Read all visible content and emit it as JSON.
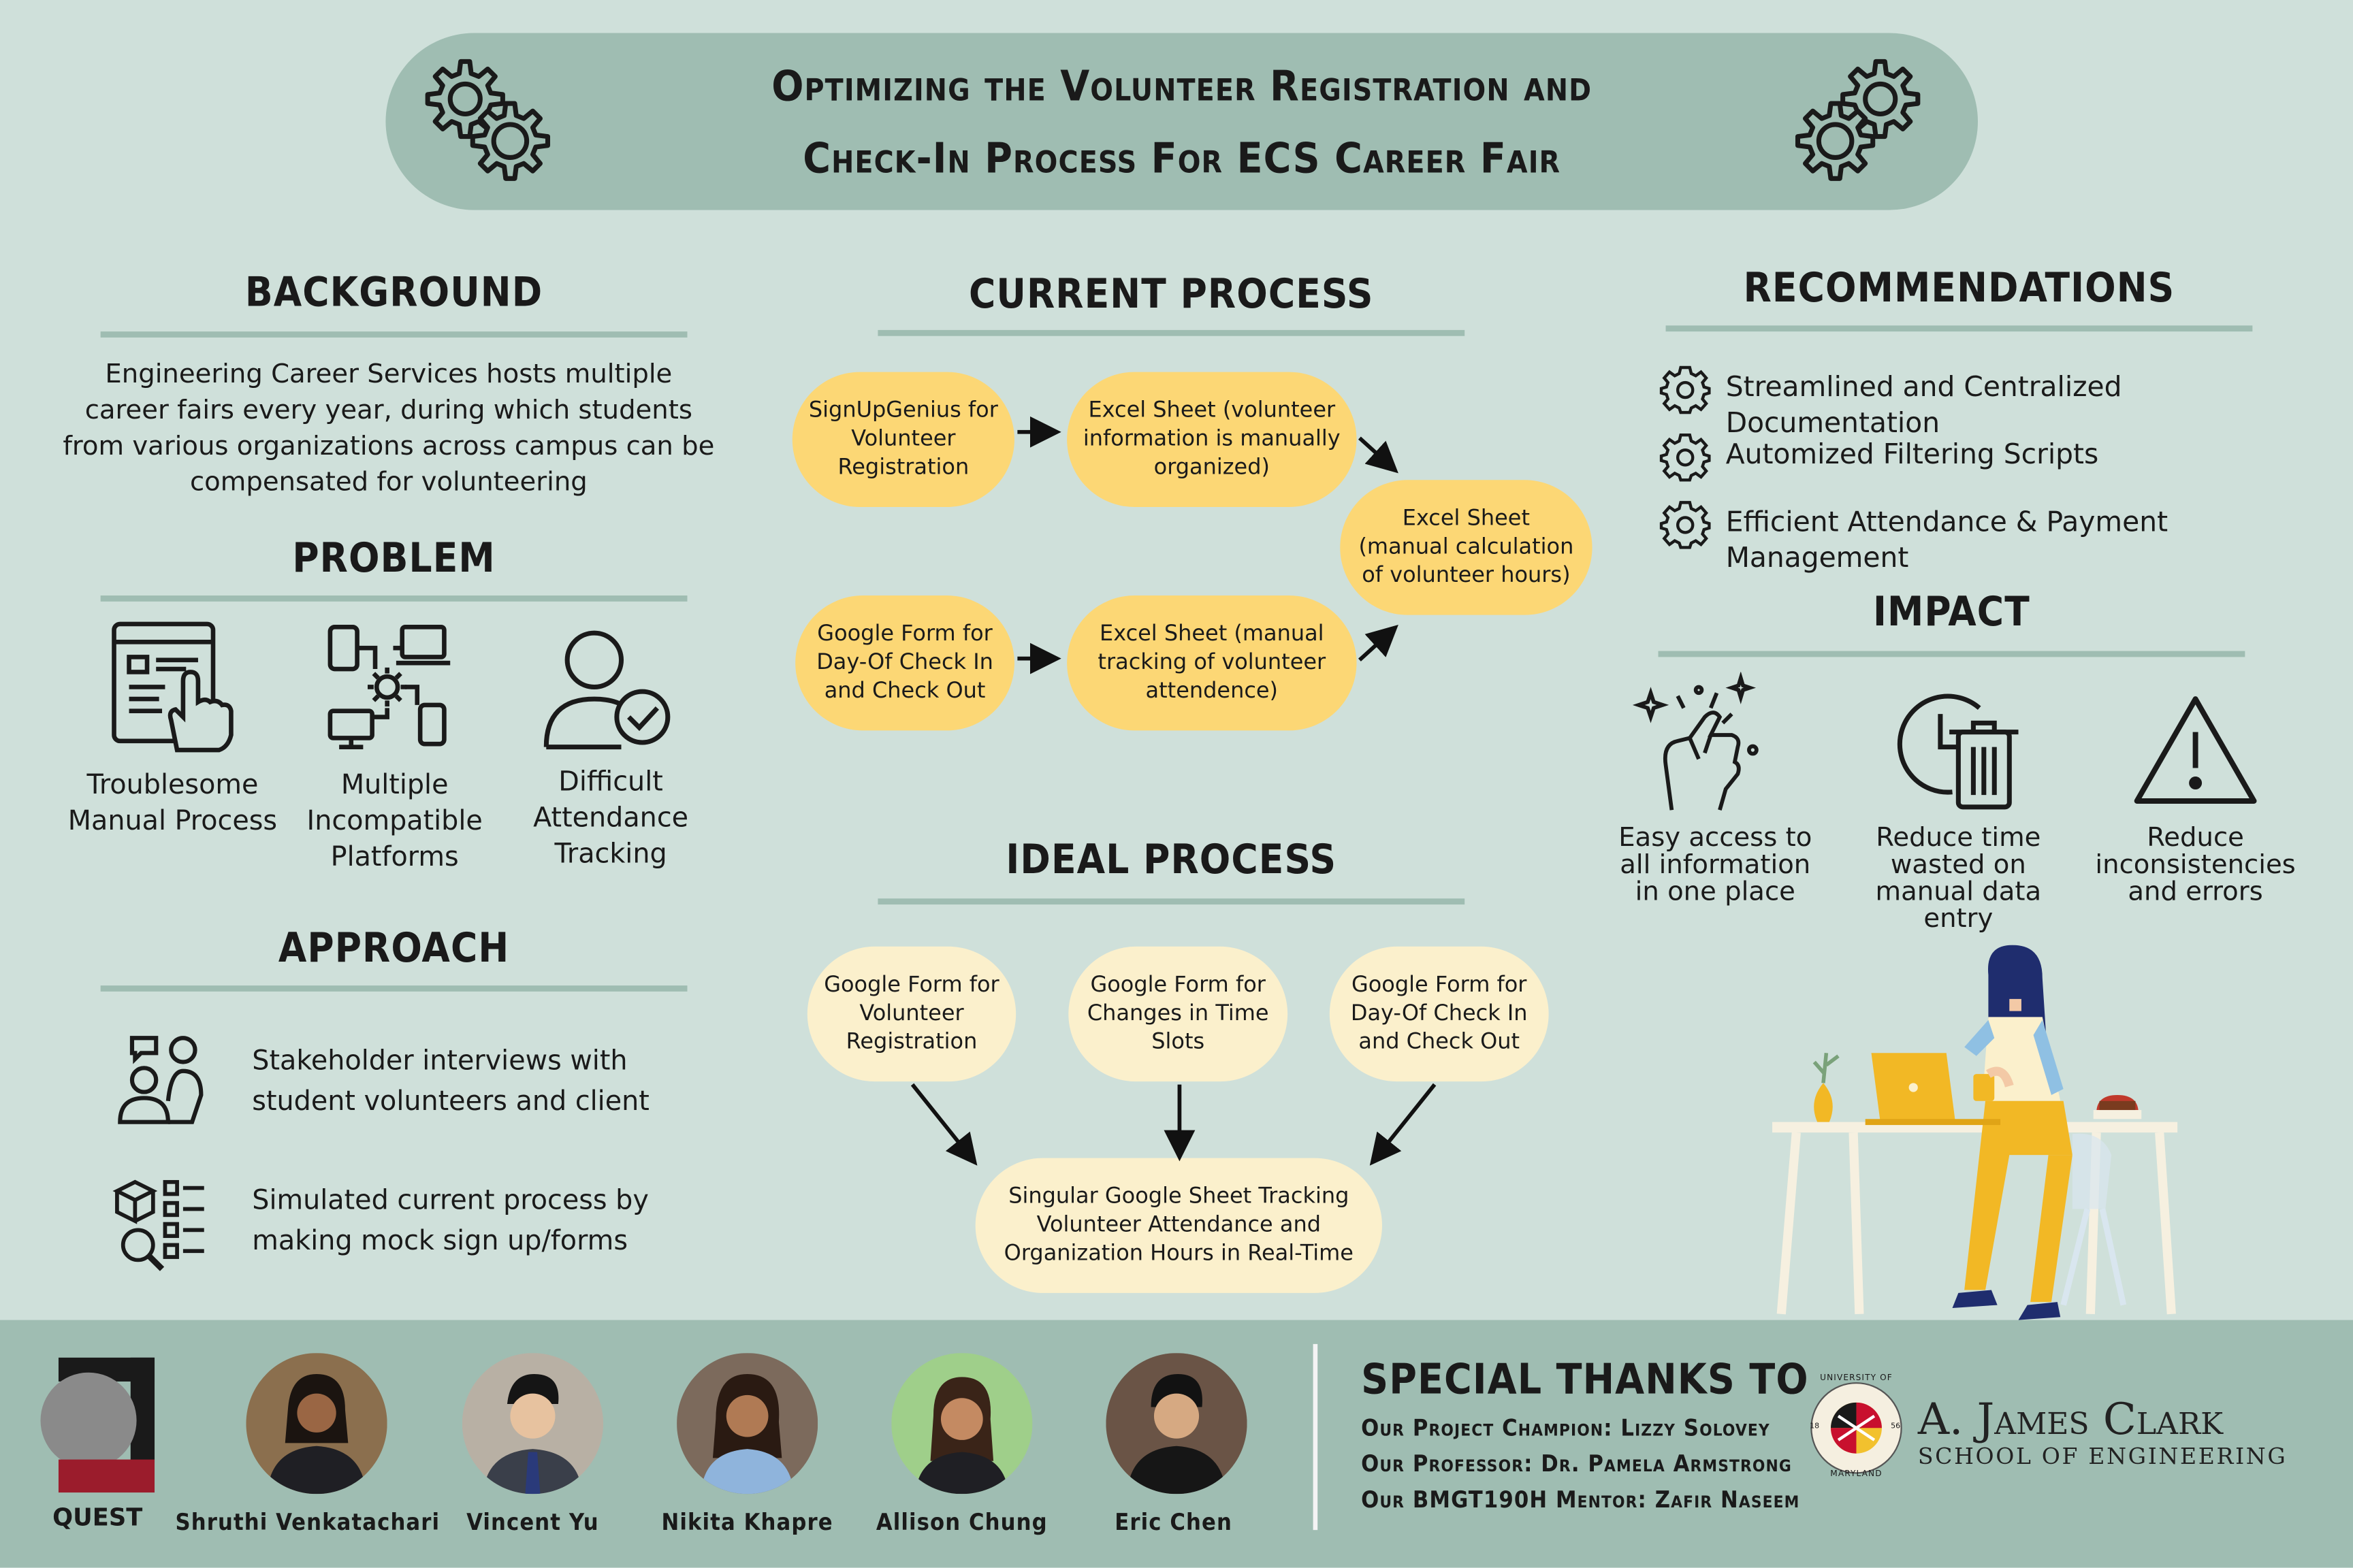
{
  "title": {
    "line1": "Optimizing the Volunteer Registration and",
    "line2": "Check-In Process For ECS Career Fair"
  },
  "background": {
    "heading": "BACKGROUND",
    "text": "Engineering Career Services hosts multiple career fairs every year, during which students from various organizations across campus can be compensated for volunteering"
  },
  "problem": {
    "heading": "PROBLEM",
    "items": [
      {
        "icon": "touch-document-icon",
        "label": "Troublesome Manual Process"
      },
      {
        "icon": "devices-network-icon",
        "label": "Multiple Incompatible Platforms"
      },
      {
        "icon": "user-check-icon",
        "label": "Difficult Attendance Tracking"
      }
    ]
  },
  "approach": {
    "heading": "APPROACH",
    "items": [
      {
        "icon": "interview-icon",
        "text": "Stakeholder interviews with student volunteers and client"
      },
      {
        "icon": "checklist-search-icon",
        "text": "Simulated current process by making mock sign up/forms"
      }
    ]
  },
  "current_process": {
    "heading": "CURRENT PROCESS",
    "nodes": [
      "SignUpGenius for Volunteer Registration",
      "Excel Sheet (volunteer information is manually organized)",
      "Google Form for Day-Of Check In and Check Out",
      "Excel Sheet (manual tracking of volunteer attendence)",
      "Excel Sheet (manual calculation of volunteer hours)"
    ]
  },
  "ideal_process": {
    "heading": "IDEAL PROCESS",
    "nodes": [
      "Google Form for Volunteer Registration",
      "Google Form for Changes in Time Slots",
      "Google Form for Day-Of Check In and Check Out",
      "Singular Google Sheet Tracking Volunteer Attendance and Organization Hours in Real-Time"
    ]
  },
  "recommendations": {
    "heading": "RECOMMENDATIONS",
    "items": [
      "Streamlined and Centralized Documentation",
      "Automized Filtering Scripts",
      "Efficient Attendance & Payment Management"
    ]
  },
  "impact": {
    "heading": "IMPACT",
    "items": [
      {
        "icon": "sparkle-hand-icon",
        "label": "Easy access to all information in one place"
      },
      {
        "icon": "clock-trash-icon",
        "label": "Reduce time wasted on manual data entry"
      },
      {
        "icon": "warning-icon",
        "label": "Reduce inconsistencies and errors"
      }
    ]
  },
  "footer": {
    "logo_text": "QUEST",
    "members": [
      "Shruthi Venkatachari",
      "Vincent Yu",
      "Nikita Khapre",
      "Allison Chung",
      "Eric Chen"
    ],
    "thanks_heading": "SPECIAL THANKS TO",
    "thanks_lines": [
      "Our Project Champion: Lizzy Solovey",
      "Our Professor: Dr. Pamela Armstrong",
      "Our BMGT190H Mentor: Zafir Naseem"
    ],
    "school_name_line1": "A. James Clark",
    "school_name_line2": "SCHOOL OF ENGINEERING",
    "seal_text_top": "UNIVERSITY OF",
    "seal_text_bottom": "MARYLAND",
    "seal_year_left": "18",
    "seal_year_right": "56"
  },
  "colors": {
    "background": "#cfe0da",
    "accent": "#9fbdb2",
    "current_node": "#fcd775",
    "ideal_node": "#fbf0cc",
    "quest_red": "#9b1c2c"
  }
}
